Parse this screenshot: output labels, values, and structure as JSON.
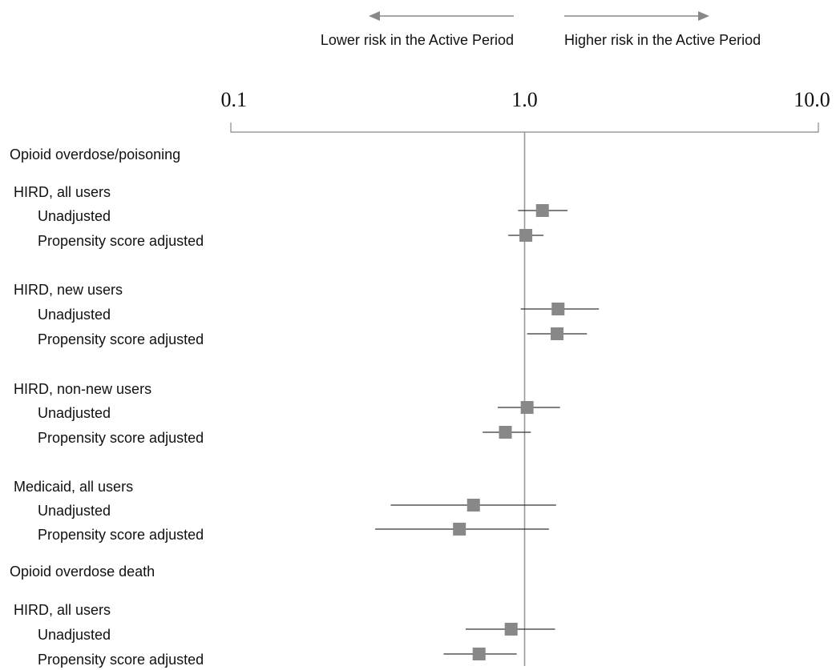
{
  "chart_data": {
    "type": "forest",
    "x_scale": "log",
    "xlim": [
      0.1,
      10.0
    ],
    "reference_line": 1.0,
    "x_ticks": [
      {
        "value": 0.1,
        "label": "0.1"
      },
      {
        "value": 1.0,
        "label": "1.0"
      },
      {
        "value": 10.0,
        "label": "10.0"
      }
    ],
    "direction_labels": {
      "lower": "Lower risk in the Active Period",
      "higher": "Higher risk in the Active Period"
    },
    "rows": [
      {
        "label": "Opioid overdose/poisoning",
        "kind": "header"
      },
      {
        "label": "HIRD, all users",
        "kind": "group"
      },
      {
        "label": "Unadjusted",
        "kind": "item",
        "estimate": 1.15,
        "lower": 0.95,
        "upper": 1.4
      },
      {
        "label": "Propensity score adjusted",
        "kind": "item",
        "estimate": 1.01,
        "lower": 0.88,
        "upper": 1.16
      },
      {
        "label": "HIRD, new users",
        "kind": "group"
      },
      {
        "label": "Unadjusted",
        "kind": "item",
        "estimate": 1.3,
        "lower": 0.97,
        "upper": 1.79
      },
      {
        "label": "Propensity score adjusted",
        "kind": "item",
        "estimate": 1.29,
        "lower": 1.02,
        "upper": 1.63
      },
      {
        "label": "HIRD, non-new users",
        "kind": "group"
      },
      {
        "label": "Unadjusted",
        "kind": "item",
        "estimate": 1.02,
        "lower": 0.81,
        "upper": 1.32
      },
      {
        "label": "Propensity score adjusted",
        "kind": "item",
        "estimate": 0.86,
        "lower": 0.72,
        "upper": 1.05
      },
      {
        "label": "Medicaid, all users",
        "kind": "group"
      },
      {
        "label": "Unadjusted",
        "kind": "item",
        "estimate": 0.67,
        "lower": 0.35,
        "upper": 1.28
      },
      {
        "label": "Propensity score adjusted",
        "kind": "item",
        "estimate": 0.6,
        "lower": 0.31,
        "upper": 1.21
      },
      {
        "label": "Opioid overdose death",
        "kind": "header"
      },
      {
        "label": "HIRD, all users",
        "kind": "group"
      },
      {
        "label": "Unadjusted",
        "kind": "item",
        "estimate": 0.9,
        "lower": 0.63,
        "upper": 1.27
      },
      {
        "label": "Propensity score adjusted",
        "kind": "item",
        "estimate": 0.7,
        "lower": 0.53,
        "upper": 0.94
      }
    ],
    "colors": {
      "marker": "#888888",
      "ci_line": "#333333",
      "reference_line": "#999999",
      "axis": "#888888",
      "arrow": "#888888"
    },
    "grid": false,
    "legend": "none"
  }
}
